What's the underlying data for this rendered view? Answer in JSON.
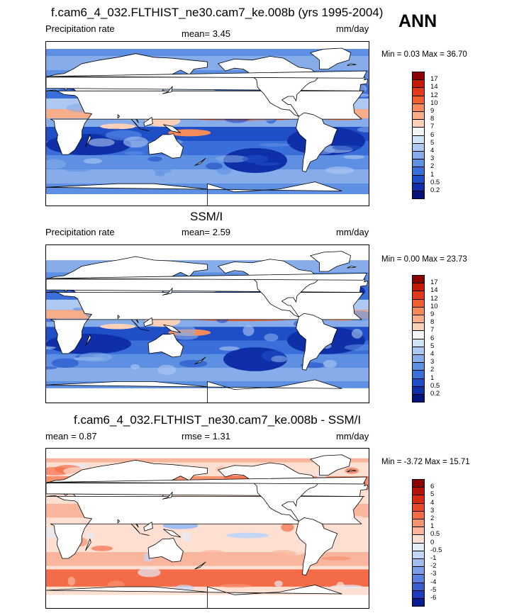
{
  "season": "ANN",
  "panels": [
    {
      "title": "f.cam6_4_032.FLTHIST_ne30.cam7_ke.008b (yrs 1995-2004)",
      "left_label": "Precipitation rate",
      "center_label": "mean=   3.45",
      "right_label": "mm/day",
      "minmax": "Min =   0.03 Max =  36.70",
      "colorbar_labels": [
        "17",
        "14",
        "12",
        "10",
        "9",
        "8",
        "7",
        "6",
        "5",
        "4",
        "3",
        "2",
        "1",
        "0.5",
        "0.2"
      ],
      "colorbar_colors": [
        "#8b0000",
        "#c41a08",
        "#e0391c",
        "#f0602e",
        "#f58a5a",
        "#f8ad8a",
        "#fbd0b8",
        "#f5f5f5",
        "#d2e2f7",
        "#aec9f1",
        "#86adea",
        "#5d8fe3",
        "#3a6fd9",
        "#1f4fc7",
        "#0f2fa8",
        "#06137a"
      ],
      "map_style": "precip"
    },
    {
      "title": "SSM/I",
      "left_label": "Precipitation rate",
      "center_label": "mean=   2.59",
      "right_label": "mm/day",
      "minmax": "Min =   0.00 Max =  23.73",
      "colorbar_labels": [
        "17",
        "14",
        "12",
        "10",
        "9",
        "8",
        "7",
        "6",
        "5",
        "4",
        "3",
        "2",
        "1",
        "0.5",
        "0.2"
      ],
      "colorbar_colors": [
        "#8b0000",
        "#c41a08",
        "#e0391c",
        "#f0602e",
        "#f58a5a",
        "#f8ad8a",
        "#fbd0b8",
        "#f5f5f5",
        "#d2e2f7",
        "#aec9f1",
        "#86adea",
        "#5d8fe3",
        "#3a6fd9",
        "#1f4fc7",
        "#0f2fa8",
        "#06137a"
      ],
      "map_style": "precip"
    },
    {
      "title": "f.cam6_4_032.FLTHIST_ne30.cam7_ke.008b - SSM/I",
      "left_label": "mean =   0.87",
      "center_label": "rmse =   1.31",
      "right_label": "mm/day",
      "minmax": "Min =  -3.72 Max =  15.71",
      "colorbar_labels": [
        "6",
        "5",
        "4",
        "3",
        "2",
        "1",
        "0.5",
        "0",
        "-0.5",
        "-1",
        "-2",
        "-3",
        "-4",
        "-5",
        "-6"
      ],
      "colorbar_colors": [
        "#8b0000",
        "#b5120a",
        "#d62a12",
        "#e8482a",
        "#f36c47",
        "#f79270",
        "#fab69c",
        "#fde0d2",
        "#e4ecfa",
        "#c4d6f5",
        "#a1bcee",
        "#7b9fe6",
        "#5a80dc",
        "#3a5fd0",
        "#1e3cbd",
        "#0a1a90"
      ],
      "map_style": "diff"
    }
  ]
}
